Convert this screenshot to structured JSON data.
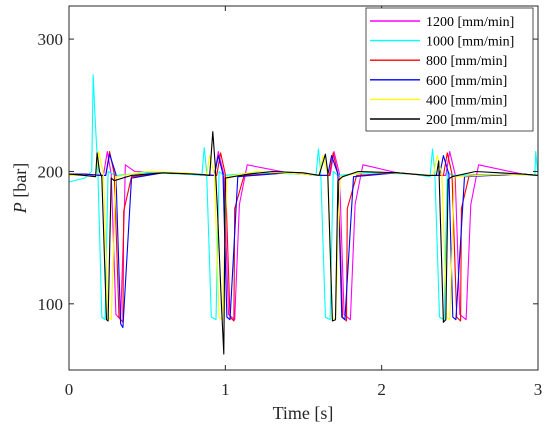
{
  "chart_data": {
    "type": "line",
    "xlabel": "Time [s]",
    "ylabel_symbol": "P",
    "ylabel_unit": " [bar]",
    "xlim": [
      0,
      3
    ],
    "ylim": [
      50,
      325
    ],
    "xticks": [
      0,
      1,
      2,
      3
    ],
    "yticks": [
      100,
      200,
      300
    ],
    "grid": false,
    "legend_position": "top-right",
    "series": [
      {
        "name": "1200 [mm/min]",
        "color": "#ff00ff",
        "x": [
          0,
          0.1,
          0.2,
          0.22,
          0.245,
          0.27,
          0.3,
          0.33,
          0.355,
          0.36,
          0.42,
          0.6,
          0.8,
          0.93,
          0.955,
          0.99,
          1.02,
          1.06,
          1.09,
          1.14,
          1.4,
          1.62,
          1.67,
          1.695,
          1.73,
          1.76,
          1.8,
          1.83,
          1.88,
          2.1,
          2.3,
          2.41,
          2.435,
          2.47,
          2.5,
          2.54,
          2.57,
          2.62,
          2.9,
          3.0
        ],
        "y": [
          198,
          198,
          197,
          197,
          215,
          198,
          92,
          88,
          175,
          205,
          200,
          199,
          198,
          197,
          215,
          198,
          92,
          88,
          175,
          205,
          199,
          197,
          197,
          215,
          198,
          92,
          88,
          175,
          205,
          199,
          197,
          197,
          215,
          198,
          92,
          88,
          175,
          205,
          198,
          197
        ]
      },
      {
        "name": "1000 [mm/min]",
        "color": "#00ffff",
        "x": [
          0,
          0.1,
          0.145,
          0.155,
          0.165,
          0.185,
          0.21,
          0.23,
          0.25,
          0.3,
          0.5,
          0.75,
          0.85,
          0.865,
          0.88,
          0.91,
          0.94,
          0.96,
          0.99,
          1.2,
          1.5,
          1.58,
          1.595,
          1.61,
          1.64,
          1.67,
          1.69,
          1.72,
          1.9,
          2.2,
          2.31,
          2.325,
          2.34,
          2.37,
          2.4,
          2.42,
          2.45,
          2.8,
          2.98,
          2.985,
          3.0
        ],
        "y": [
          192,
          195,
          200,
          273,
          245,
          200,
          90,
          88,
          200,
          197,
          199,
          198,
          197,
          218,
          200,
          90,
          88,
          200,
          197,
          199,
          198,
          197,
          217,
          200,
          90,
          88,
          200,
          197,
          199,
          198,
          196,
          217,
          200,
          90,
          88,
          200,
          197,
          198,
          197,
          215,
          197
        ]
      },
      {
        "name": "800 [mm/min]",
        "color": "#ff0000",
        "x": [
          0,
          0.1,
          0.22,
          0.235,
          0.26,
          0.29,
          0.32,
          0.345,
          0.35,
          0.4,
          0.6,
          0.8,
          0.93,
          0.945,
          0.97,
          1.0,
          1.03,
          1.055,
          1.06,
          1.12,
          1.4,
          1.62,
          1.665,
          1.69,
          1.72,
          1.75,
          1.775,
          1.78,
          1.84,
          2.1,
          2.3,
          2.395,
          2.42,
          2.45,
          2.48,
          2.505,
          2.51,
          2.56,
          2.9,
          3.0
        ],
        "y": [
          198,
          198,
          197,
          197,
          215,
          198,
          90,
          86,
          170,
          196,
          199,
          198,
          197,
          197,
          214,
          198,
          90,
          87,
          172,
          197,
          199,
          197,
          197,
          214,
          198,
          90,
          87,
          172,
          197,
          199,
          197,
          197,
          214,
          198,
          90,
          87,
          172,
          197,
          198,
          197
        ]
      },
      {
        "name": "600 [mm/min]",
        "color": "#0000ff",
        "x": [
          0,
          0.1,
          0.2,
          0.235,
          0.26,
          0.3,
          0.33,
          0.345,
          0.4,
          0.6,
          0.8,
          0.93,
          0.955,
          0.985,
          1.01,
          1.03,
          1.08,
          1.4,
          1.62,
          1.655,
          1.68,
          1.72,
          1.745,
          1.765,
          1.82,
          2.1,
          2.3,
          2.37,
          2.395,
          2.43,
          2.455,
          2.475,
          2.53,
          2.9,
          3.0
        ],
        "y": [
          198,
          198,
          197,
          197,
          213,
          198,
          85,
          82,
          195,
          199,
          198,
          197,
          212,
          198,
          90,
          88,
          196,
          199,
          197,
          197,
          212,
          198,
          90,
          88,
          196,
          199,
          197,
          197,
          212,
          198,
          90,
          88,
          196,
          198,
          197
        ]
      },
      {
        "name": "400 [mm/min]",
        "color": "#ffff00",
        "x": [
          0,
          0.1,
          0.17,
          0.19,
          0.22,
          0.25,
          0.27,
          0.3,
          0.5,
          0.75,
          0.88,
          0.9,
          0.93,
          0.96,
          0.98,
          1.01,
          1.2,
          1.5,
          1.6,
          1.625,
          1.655,
          1.685,
          1.705,
          1.735,
          1.9,
          2.2,
          2.33,
          2.355,
          2.385,
          2.415,
          2.435,
          2.465,
          2.8,
          3.0
        ],
        "y": [
          197,
          197,
          196,
          215,
          198,
          90,
          88,
          196,
          200,
          199,
          197,
          212,
          198,
          90,
          88,
          196,
          200,
          198,
          197,
          212,
          198,
          90,
          88,
          196,
          200,
          198,
          197,
          212,
          198,
          90,
          88,
          196,
          198,
          197
        ]
      },
      {
        "name": "200 [mm/min]",
        "color": "#000000",
        "x": [
          0,
          0.1,
          0.17,
          0.18,
          0.195,
          0.21,
          0.24,
          0.25,
          0.27,
          0.29,
          0.4,
          0.6,
          0.8,
          0.9,
          0.92,
          0.935,
          0.95,
          0.975,
          0.99,
          1.0,
          1.05,
          1.15,
          1.3,
          1.5,
          1.6,
          1.64,
          1.655,
          1.685,
          1.705,
          1.72,
          1.75,
          1.85,
          2.1,
          2.3,
          2.35,
          2.365,
          2.395,
          2.41,
          2.425,
          2.45,
          2.6,
          2.9,
          3.0
        ],
        "y": [
          198,
          197,
          196,
          214,
          200,
          196,
          88,
          87,
          195,
          193,
          197,
          199,
          198,
          197,
          230,
          205,
          170,
          100,
          62,
          195,
          196,
          198,
          200,
          199,
          197,
          213,
          200,
          87,
          88,
          193,
          196,
          200,
          199,
          197,
          197,
          208,
          86,
          88,
          194,
          196,
          200,
          198,
          197
        ]
      }
    ]
  }
}
